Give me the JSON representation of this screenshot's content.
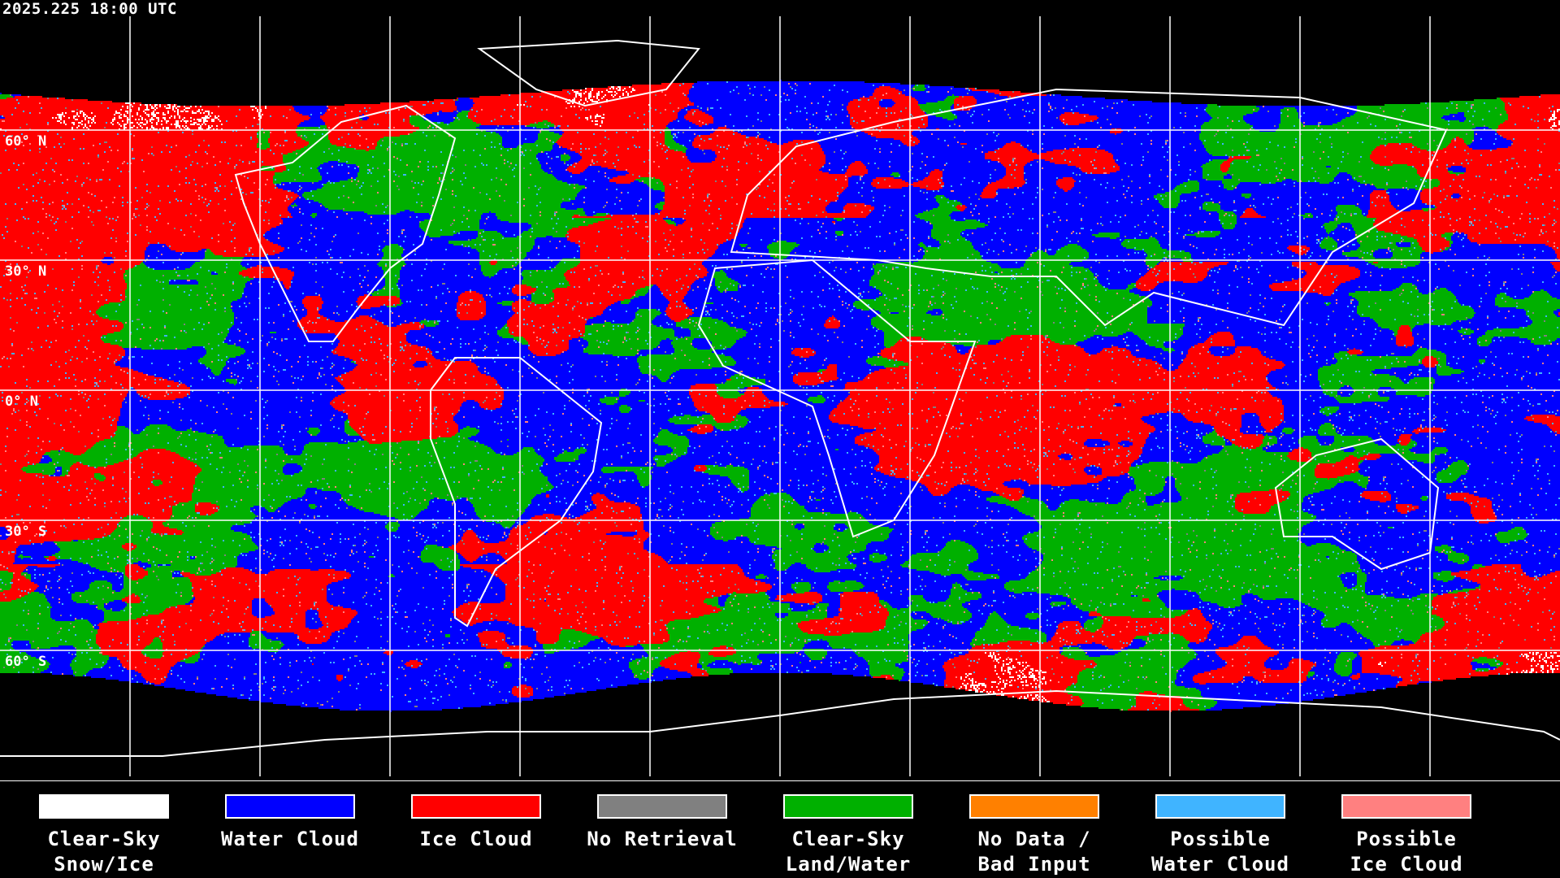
{
  "title": "2025.225 18:00 UTC",
  "map": {
    "projection": "equirectangular",
    "grid_interval_deg": 30,
    "lat_labels": [
      "60° N",
      "30° N",
      "0° N",
      "30° S",
      "60° S"
    ],
    "coastline_color": "#ffffff",
    "no_coverage_color": "#000000"
  },
  "legend": [
    {
      "line1": "Clear-Sky",
      "line2": "Snow/Ice",
      "color": "#ffffff"
    },
    {
      "line1": "Water Cloud",
      "line2": "",
      "color": "#0000ff"
    },
    {
      "line1": "Ice Cloud",
      "line2": "",
      "color": "#ff0000"
    },
    {
      "line1": "No Retrieval",
      "line2": "",
      "color": "#808080"
    },
    {
      "line1": "Clear-Sky",
      "line2": "Land/Water",
      "color": "#00b000"
    },
    {
      "line1": "No Data /",
      "line2": "Bad Input",
      "color": "#ff8000"
    },
    {
      "line1": "Possible",
      "line2": "Water Cloud",
      "color": "#40b4ff"
    },
    {
      "line1": "Possible",
      "line2": "Ice Cloud",
      "color": "#ff8080"
    }
  ]
}
